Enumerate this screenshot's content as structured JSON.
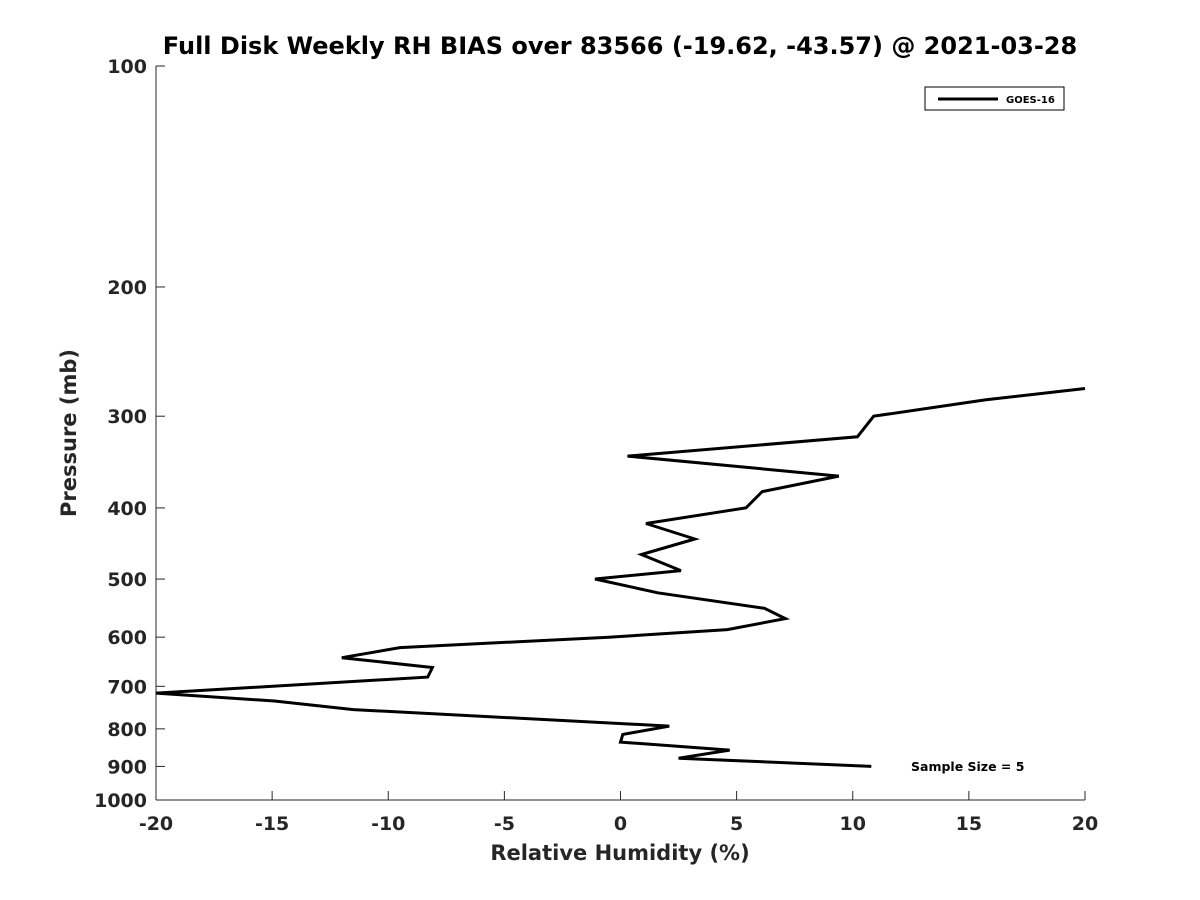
{
  "chart_data": {
    "type": "line",
    "title": "Full Disk Weekly RH BIAS over 83566 (-19.62, -43.57) @ 2021-03-28",
    "xlabel": "Relative Humidity (%)",
    "ylabel": "Pressure (mb)",
    "xlim": [
      -20,
      20
    ],
    "ylim": [
      100,
      1000
    ],
    "y_scale": "log",
    "y_reversed": true,
    "grid": false,
    "legend_position": "top-right",
    "x_ticks": [
      "-20",
      "-15",
      "-10",
      "-5",
      "0",
      "5",
      "10",
      "15",
      "20"
    ],
    "x_tick_values": [
      -20,
      -15,
      -10,
      -5,
      0,
      5,
      10,
      15,
      20
    ],
    "y_ticks": [
      "100",
      "200",
      "300",
      "400",
      "500",
      "600",
      "700",
      "800",
      "900",
      "1000"
    ],
    "y_tick_values": [
      100,
      200,
      300,
      400,
      500,
      600,
      700,
      800,
      900,
      1000
    ],
    "series": [
      {
        "name": "GOES-16",
        "color": "#000000",
        "points": [
          [
            20.0,
            275
          ],
          [
            15.7,
            285
          ],
          [
            10.9,
            300
          ],
          [
            10.2,
            320
          ],
          [
            0.3,
            340
          ],
          [
            9.4,
            362
          ],
          [
            6.1,
            380
          ],
          [
            5.4,
            400
          ],
          [
            1.1,
            420
          ],
          [
            3.2,
            441
          ],
          [
            0.9,
            463
          ],
          [
            2.6,
            487
          ],
          [
            -1.1,
            500
          ],
          [
            1.6,
            522
          ],
          [
            6.2,
            548
          ],
          [
            7.1,
            566
          ],
          [
            4.6,
            586
          ],
          [
            -0.5,
            600
          ],
          [
            -9.5,
            620
          ],
          [
            -12.0,
            640
          ],
          [
            -8.1,
            660
          ],
          [
            -8.3,
            680
          ],
          [
            -20.0,
            715
          ],
          [
            -14.9,
            733
          ],
          [
            -11.5,
            753
          ],
          [
            2.1,
            793
          ],
          [
            0.1,
            814
          ],
          [
            0.0,
            834
          ],
          [
            4.7,
            855
          ],
          [
            2.5,
            877
          ],
          [
            10.8,
            900
          ]
        ]
      }
    ],
    "annotations": [
      {
        "text": "Sample Size = 5"
      }
    ]
  }
}
